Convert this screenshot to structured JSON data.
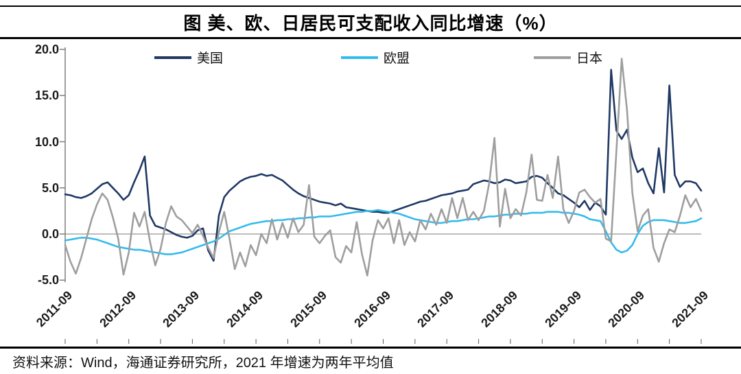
{
  "header": {
    "title": "图 美、欧、日居民可支配收入同比增速（%）"
  },
  "footer": {
    "source": "资料来源：Wind，海通证券研究所，2021 年增速为两年平均值"
  },
  "colors": {
    "us_line": "#1f3864",
    "eu_line": "#33bbec",
    "japan_line": "#9e9e9e",
    "zero_line": "#a6a6a6",
    "axis_spine": "#7f7f7f",
    "axis_tick": "#595959",
    "border_rule": "#000000"
  },
  "chart_data": {
    "type": "line",
    "title": "图 美、欧、日居民可支配收入同比增速（%）",
    "xlabel": "",
    "ylabel": "",
    "ylim": [
      -5.0,
      20.0
    ],
    "y_ticks": [
      20.0,
      15.0,
      10.0,
      5.0,
      0.0,
      -5.0
    ],
    "x_tick_labels": [
      "2011-09",
      "2012-09",
      "2013-09",
      "2014-09",
      "2015-09",
      "2016-09",
      "2017-09",
      "2018-09",
      "2019-09",
      "2020-09",
      "2021-09"
    ],
    "x_start": "2011-09",
    "x_end": "2021-09",
    "x_freq": "monthly",
    "grid": "zero-line-only",
    "legend_position": "top",
    "series": [
      {
        "name": "美国",
        "color": "#1f3864",
        "values": [
          4.3,
          4.2,
          4.0,
          3.9,
          4.1,
          4.4,
          4.9,
          5.4,
          5.6,
          5.0,
          4.4,
          3.7,
          4.2,
          5.6,
          6.9,
          8.4,
          2.0,
          0.9,
          0.7,
          0.5,
          0.2,
          -0.1,
          -0.3,
          -0.4,
          -0.2,
          0.4,
          0.6,
          -1.8,
          -2.9,
          2.0,
          4.0,
          4.7,
          5.2,
          5.7,
          6.0,
          6.2,
          6.3,
          6.5,
          6.3,
          6.4,
          6.1,
          5.8,
          5.3,
          4.8,
          4.4,
          4.1,
          3.9,
          3.7,
          3.5,
          3.4,
          3.3,
          3.1,
          3.3,
          2.9,
          2.8,
          2.7,
          2.6,
          2.5,
          2.4,
          2.4,
          2.3,
          2.3,
          2.5,
          2.7,
          2.9,
          3.1,
          3.3,
          3.5,
          3.6,
          3.8,
          4.0,
          4.2,
          4.3,
          4.4,
          4.6,
          4.7,
          4.8,
          5.4,
          5.6,
          5.8,
          5.7,
          5.5,
          5.6,
          5.9,
          5.8,
          5.5,
          5.6,
          5.7,
          6.2,
          6.3,
          6.1,
          5.5,
          5.0,
          4.4,
          4.2,
          3.8,
          3.4,
          2.9,
          3.6,
          2.6,
          3.4,
          3.0,
          2.1,
          17.8,
          11.2,
          10.3,
          11.3,
          8.3,
          6.7,
          7.1,
          5.5,
          4.4,
          9.3,
          4.5,
          16.1,
          6.4,
          5.1,
          5.7,
          5.7,
          5.5,
          4.7
        ]
      },
      {
        "name": "欧盟",
        "color": "#33bbec",
        "values": [
          -0.7,
          -0.6,
          -0.5,
          -0.4,
          -0.4,
          -0.5,
          -0.6,
          -0.8,
          -1.0,
          -1.2,
          -1.4,
          -1.5,
          -1.6,
          -1.7,
          -1.7,
          -1.8,
          -1.9,
          -2.0,
          -2.1,
          -2.2,
          -2.2,
          -2.1,
          -2.0,
          -1.8,
          -1.6,
          -1.4,
          -1.2,
          -1.0,
          -0.8,
          -0.5,
          -0.1,
          0.3,
          0.5,
          0.7,
          0.9,
          1.1,
          1.2,
          1.3,
          1.4,
          1.4,
          1.5,
          1.5,
          1.6,
          1.6,
          1.7,
          1.7,
          1.8,
          1.8,
          1.9,
          1.9,
          1.9,
          2.0,
          2.1,
          2.2,
          2.3,
          2.4,
          2.4,
          2.5,
          2.5,
          2.6,
          2.5,
          2.4,
          2.3,
          2.2,
          2.0,
          1.8,
          1.6,
          1.5,
          1.4,
          1.3,
          1.2,
          1.2,
          1.3,
          1.4,
          1.4,
          1.5,
          1.6,
          1.6,
          1.7,
          1.8,
          1.9,
          1.9,
          2.0,
          2.1,
          2.1,
          2.2,
          2.2,
          2.2,
          2.3,
          2.3,
          2.3,
          2.4,
          2.4,
          2.4,
          2.3,
          2.3,
          2.2,
          2.1,
          1.9,
          1.6,
          1.5,
          1.4,
          0.3,
          -0.9,
          -1.7,
          -2.0,
          -1.8,
          -1.2,
          0.0,
          0.9,
          1.3,
          1.5,
          1.5,
          1.5,
          1.4,
          1.3,
          1.2,
          1.2,
          1.3,
          1.4,
          1.7
        ]
      },
      {
        "name": "日本",
        "color": "#9e9e9e",
        "values": [
          -1.2,
          -3.0,
          -4.3,
          -2.6,
          -0.5,
          1.6,
          3.2,
          4.4,
          3.7,
          1.8,
          -0.5,
          -4.4,
          -2.0,
          2.3,
          0.8,
          2.4,
          -0.8,
          -3.4,
          -1.6,
          1.2,
          3.0,
          1.9,
          1.5,
          0.8,
          0.1,
          1.0,
          -0.2,
          -1.5,
          -2.6,
          0.2,
          2.4,
          -0.5,
          -3.8,
          -2.0,
          -3.5,
          -1.2,
          -2.3,
          0.0,
          -1.0,
          1.6,
          -0.6,
          1.2,
          -0.4,
          1.7,
          0.2,
          1.0,
          5.3,
          -0.3,
          -1.0,
          -0.2,
          0.4,
          -2.5,
          -3.1,
          -1.3,
          -2.0,
          1.3,
          -2.2,
          -4.5,
          -0.7,
          1.5,
          0.6,
          1.7,
          -1.0,
          1.5,
          -1.2,
          0.2,
          -0.8,
          1.5,
          0.5,
          2.2,
          1.0,
          2.7,
          1.2,
          3.9,
          1.7,
          3.9,
          1.5,
          2.4,
          1.5,
          2.5,
          5.5,
          10.4,
          0.8,
          4.9,
          1.7,
          2.7,
          2.0,
          4.5,
          8.6,
          3.7,
          3.6,
          6.4,
          3.9,
          8.4,
          2.7,
          1.2,
          2.5,
          4.5,
          4.8,
          4.0,
          3.4,
          3.8,
          -0.5,
          -0.8,
          9.0,
          19.0,
          13.4,
          4.5,
          0.3,
          2.0,
          2.7,
          -1.5,
          -3.0,
          -1.0,
          0.5,
          0.2,
          2.0,
          4.2,
          2.9,
          3.8,
          2.5
        ]
      }
    ]
  }
}
